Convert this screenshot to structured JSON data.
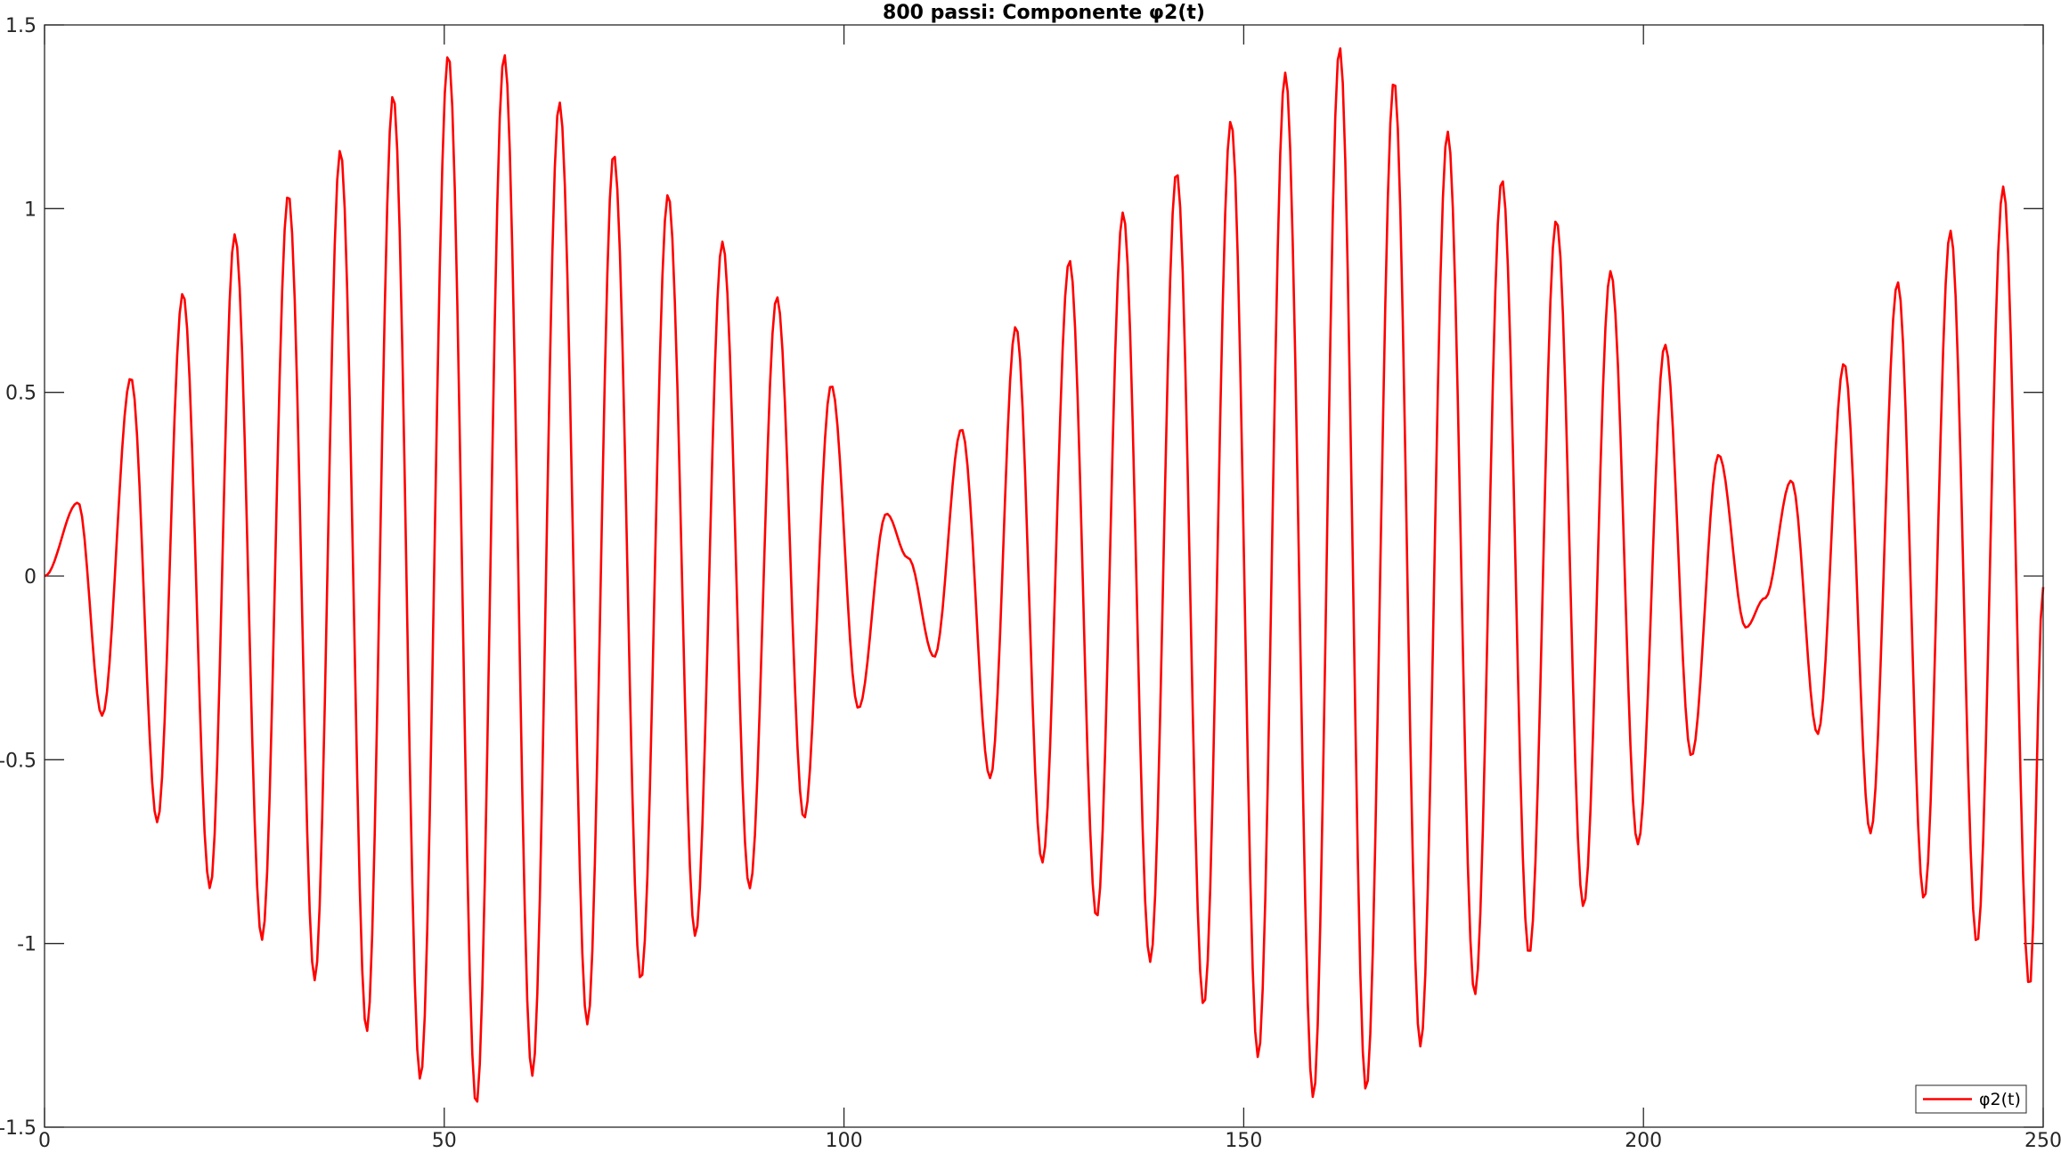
{
  "chart_data": {
    "type": "line",
    "title": "800 passi: Componente φ2(t)",
    "xlabel": "",
    "ylabel": "",
    "xlim": [
      0,
      250
    ],
    "ylim": [
      -1.5,
      1.5
    ],
    "xticks": [
      0,
      50,
      100,
      150,
      200,
      250
    ],
    "yticks": [
      -1.5,
      -1,
      -0.5,
      0,
      0.5,
      1,
      1.5
    ],
    "xtick_labels": [
      "0",
      "50",
      "100",
      "150",
      "200",
      "250"
    ],
    "ytick_labels": [
      "-1.5",
      "-1",
      "-0.5",
      "0",
      "0.5",
      "1",
      "1.5"
    ],
    "grid": false,
    "box": true,
    "legend": {
      "location": "bottom-right",
      "entries": [
        "φ2(t)"
      ]
    },
    "series": [
      {
        "name": "φ2(t)",
        "color": "#ff0000",
        "samples": 800,
        "peaks": [
          [
            0,
            0
          ],
          [
            4.2,
            0.2
          ],
          [
            7.2,
            -0.38
          ],
          [
            10.8,
            0.54
          ],
          [
            14.1,
            -0.67
          ],
          [
            17.3,
            0.77
          ],
          [
            20.7,
            -0.85
          ],
          [
            23.8,
            0.93
          ],
          [
            27.2,
            -0.99
          ],
          [
            30.5,
            1.04
          ],
          [
            33.8,
            -1.1
          ],
          [
            37.0,
            1.16
          ],
          [
            40.3,
            -1.24
          ],
          [
            43.6,
            1.31
          ],
          [
            47.0,
            -1.37
          ],
          [
            50.5,
            1.42
          ],
          [
            54.0,
            -1.44
          ],
          [
            57.5,
            1.42
          ],
          [
            61.0,
            -1.36
          ],
          [
            64.4,
            1.29
          ],
          [
            67.9,
            -1.22
          ],
          [
            71.2,
            1.15
          ],
          [
            74.6,
            -1.1
          ],
          [
            78.0,
            1.04
          ],
          [
            81.4,
            -0.98
          ],
          [
            84.8,
            0.91
          ],
          [
            88.2,
            -0.85
          ],
          [
            91.6,
            0.76
          ],
          [
            95.0,
            -0.66
          ],
          [
            98.4,
            0.52
          ],
          [
            101.8,
            -0.36
          ],
          [
            105.3,
            0.17
          ],
          [
            108.0,
            0.05
          ],
          [
            111.3,
            -0.22
          ],
          [
            114.7,
            0.4
          ],
          [
            118.3,
            -0.55
          ],
          [
            121.5,
            0.68
          ],
          [
            124.8,
            -0.78
          ],
          [
            128.2,
            0.86
          ],
          [
            131.6,
            -0.93
          ],
          [
            134.9,
            0.99
          ],
          [
            138.3,
            -1.05
          ],
          [
            141.6,
            1.1
          ],
          [
            145.0,
            -1.17
          ],
          [
            148.4,
            1.24
          ],
          [
            151.8,
            -1.31
          ],
          [
            155.2,
            1.37
          ],
          [
            158.7,
            -1.42
          ],
          [
            162.0,
            1.44
          ],
          [
            165.3,
            -1.4
          ],
          [
            168.8,
            1.35
          ],
          [
            172.1,
            -1.28
          ],
          [
            175.5,
            1.21
          ],
          [
            178.9,
            -1.14
          ],
          [
            182.3,
            1.08
          ],
          [
            185.7,
            -1.03
          ],
          [
            189.1,
            0.97
          ],
          [
            192.5,
            -0.9
          ],
          [
            195.9,
            0.83
          ],
          [
            199.3,
            -0.73
          ],
          [
            202.7,
            0.63
          ],
          [
            206.0,
            -0.49
          ],
          [
            209.4,
            0.33
          ],
          [
            212.8,
            -0.14
          ],
          [
            215.2,
            -0.06
          ],
          [
            218.5,
            0.26
          ],
          [
            221.8,
            -0.43
          ],
          [
            225.1,
            0.58
          ],
          [
            228.4,
            -0.7
          ],
          [
            231.8,
            0.8
          ],
          [
            235.1,
            -0.88
          ],
          [
            238.4,
            0.94
          ],
          [
            241.7,
            -1.0
          ],
          [
            245.0,
            1.06
          ],
          [
            248.3,
            -1.12
          ],
          [
            250,
            -0.03
          ]
        ]
      }
    ]
  }
}
